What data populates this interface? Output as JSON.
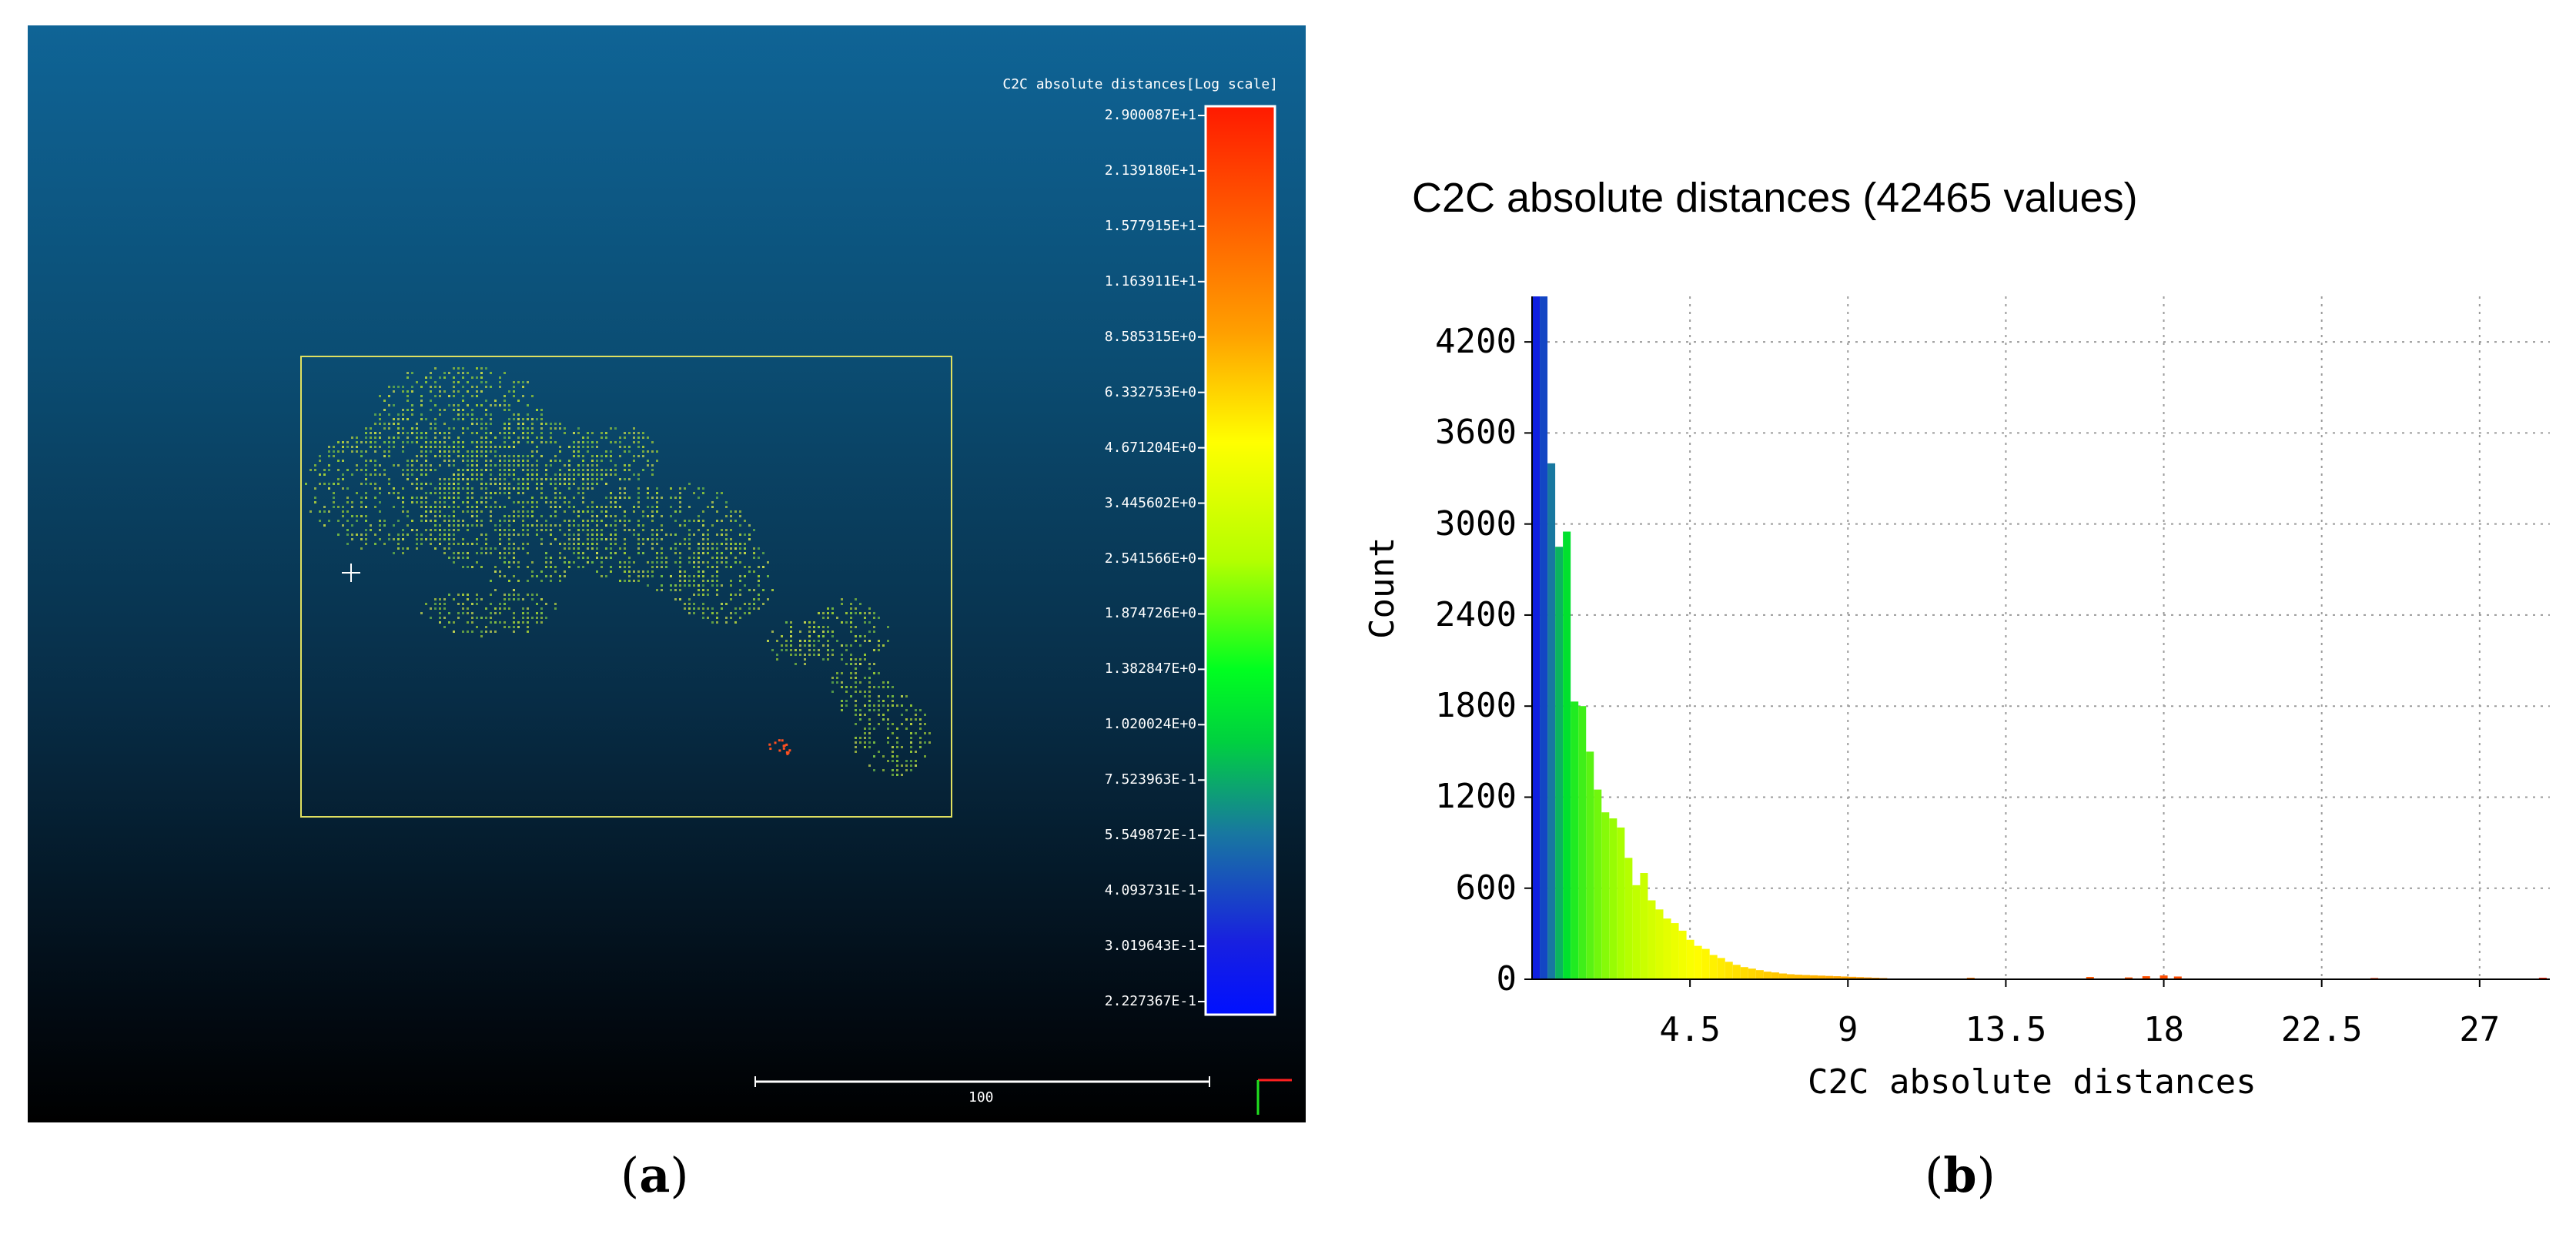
{
  "panel_a": {
    "caption_open": "(",
    "caption_letter": "a",
    "caption_close": ")",
    "colorscale_title": "C2C absolute distances[Log scale]",
    "colorscale_ticks": [
      "2.900087E+1",
      "2.139180E+1",
      "1.577915E+1",
      "1.163911E+1",
      "8.585315E+0",
      "6.332753E+0",
      "4.671204E+0",
      "3.445602E+0",
      "2.541566E+0",
      "1.874726E+0",
      "1.382847E+0",
      "1.020024E+0",
      "7.523963E-1",
      "5.549872E-1",
      "4.093731E-1",
      "3.019643E-1",
      "2.227367E-1"
    ],
    "scalebar_label": "100",
    "colors": {
      "frame": "#e0e060",
      "cloud_main": "#8cc83c",
      "cloud_hot": "#ff5020"
    }
  },
  "panel_b": {
    "caption_open": "(",
    "caption_letter": "b",
    "caption_close": ")"
  },
  "chart_data": {
    "type": "bar",
    "title": "C2C absolute distances (42465 values)",
    "xlabel": "C2C absolute distances",
    "ylabel": "Count",
    "xlim": [
      0,
      29
    ],
    "ylim": [
      0,
      4500
    ],
    "xticks": [
      "4.5",
      "9",
      "13.5",
      "18",
      "22.5",
      "27"
    ],
    "yticks": [
      "0",
      "600",
      "1200",
      "1800",
      "2400",
      "3000",
      "3600",
      "4200"
    ],
    "grid": true,
    "bin_width": 0.22,
    "bin_centers": [
      0.11,
      0.33,
      0.55,
      0.77,
      0.99,
      1.21,
      1.43,
      1.65,
      1.87,
      2.09,
      2.31,
      2.53,
      2.75,
      2.97,
      3.19,
      3.41,
      3.63,
      3.85,
      4.07,
      4.29,
      4.51,
      4.73,
      4.95,
      5.17,
      5.39,
      5.61,
      5.83,
      6.05,
      6.27,
      6.49,
      6.71,
      6.93,
      7.15,
      7.37,
      7.59,
      7.81,
      8.03,
      8.25,
      8.47,
      8.69,
      8.91,
      9.13,
      9.35,
      9.57,
      9.79,
      10.01,
      12.5,
      15.9,
      17.0,
      17.5,
      18.0,
      18.4,
      24.0,
      28.8
    ],
    "values": [
      4500,
      4500,
      3400,
      2850,
      2950,
      1830,
      1800,
      1500,
      1250,
      1100,
      1060,
      1000,
      800,
      620,
      700,
      520,
      460,
      400,
      370,
      320,
      260,
      220,
      200,
      160,
      140,
      115,
      95,
      80,
      70,
      60,
      50,
      45,
      38,
      33,
      30,
      28,
      26,
      24,
      22,
      20,
      18,
      16,
      14,
      12,
      10,
      8,
      10,
      15,
      12,
      20,
      25,
      18,
      8,
      10
    ]
  }
}
